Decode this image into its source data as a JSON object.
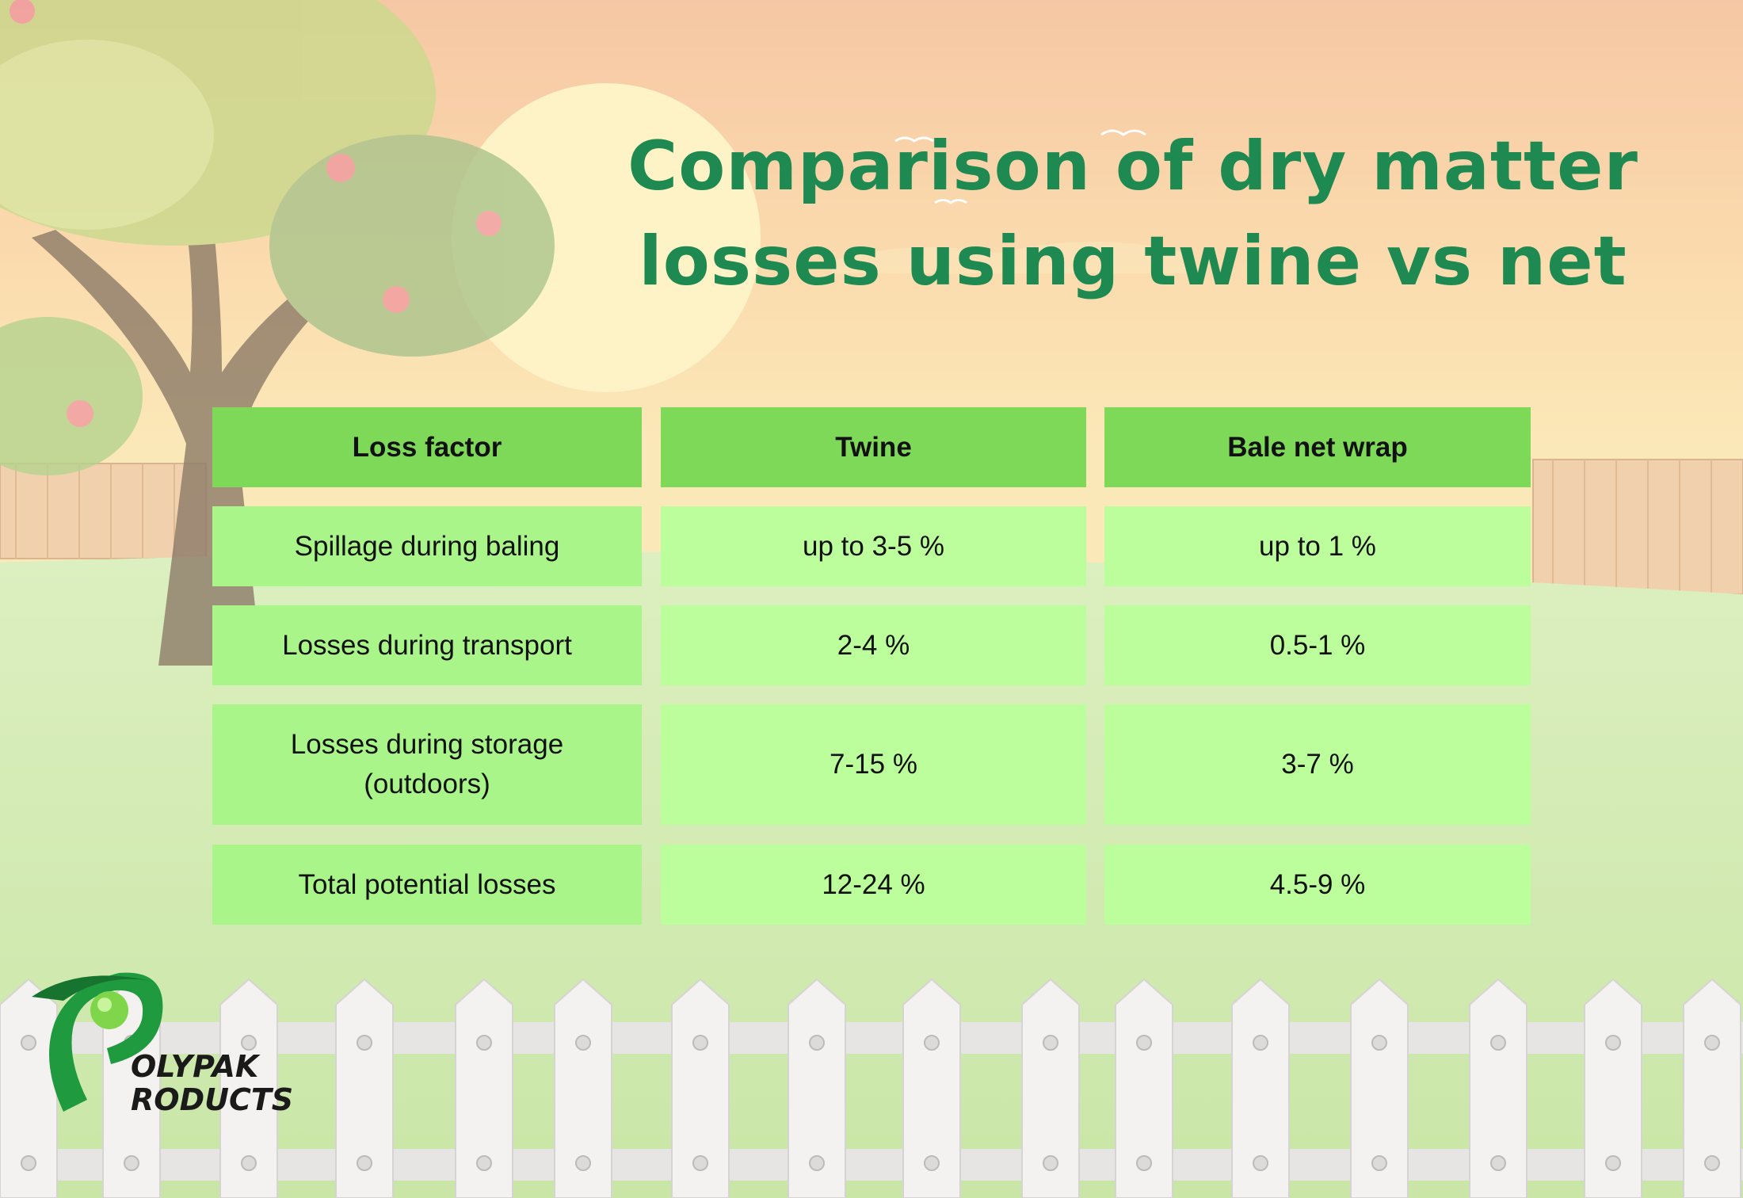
{
  "title": {
    "line1": "Comparison of dry matter",
    "line2": "losses using twine vs net"
  },
  "table": {
    "headers": [
      "Loss factor",
      "Twine",
      "Bale net wrap"
    ],
    "rows": [
      {
        "factor": "Spillage during baling",
        "twine": "up to 3-5 %",
        "net": "up to 1 %"
      },
      {
        "factor": "Losses during transport",
        "twine": "2-4 %",
        "net": "0.5-1 %"
      },
      {
        "factor_line1": "Losses during storage",
        "factor_line2": "(outdoors)",
        "twine": "7-15 %",
        "net": "3-7 %"
      },
      {
        "factor": "Total potential losses",
        "twine": "12-24 %",
        "net": "4.5-9 %"
      }
    ]
  },
  "logo": {
    "line1": "OLYPAK",
    "line2": "RODUCTS"
  },
  "colors": {
    "title": "#1e8a52",
    "header_bg": "#7dd957",
    "factor_bg": "#a9f58a",
    "value_bg": "#bcfd9c"
  }
}
